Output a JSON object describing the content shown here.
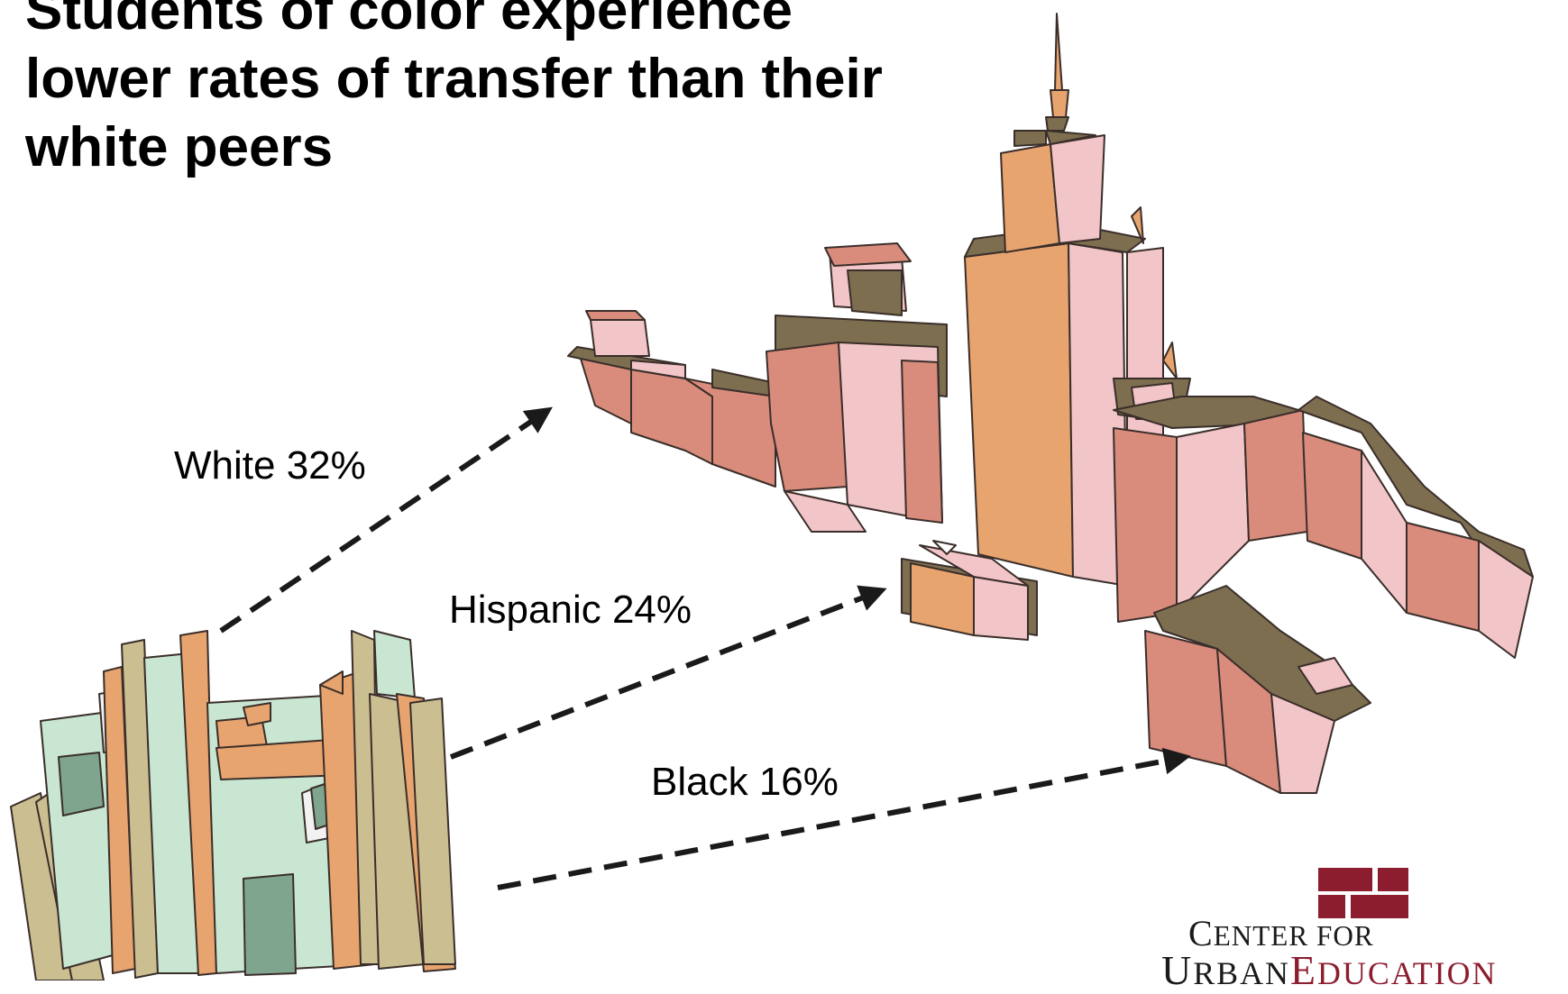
{
  "title": {
    "lines": [
      "Students of color experience",
      "lower rates of transfer than their",
      "white peers"
    ]
  },
  "transfer_rates": [
    {
      "label": "White 32%",
      "group": "White",
      "percent": 32
    },
    {
      "label": "Hispanic 24%",
      "group": "Hispanic",
      "percent": 24
    },
    {
      "label": "Black 16%",
      "group": "Black",
      "percent": 16
    }
  ],
  "logo": {
    "line1_big": "C",
    "line1_rest": "ENTER",
    "line1_small": " FOR",
    "line2_big": "U",
    "line2_rest": "RBAN",
    "line2_accent_big": "E",
    "line2_accent_rest": "DUCATION",
    "color": "#8c1d2f"
  },
  "colors": {
    "building_orange": "#e8a46e",
    "building_pink": "#f2c5c8",
    "building_rose": "#d98c7c",
    "roof_olive": "#7d6e50",
    "small_green": "#c8e6d2",
    "small_tan": "#cbbf92",
    "arrow": "#1a1a1a"
  },
  "icons": {
    "small_college": "community-college-building-icon",
    "university": "university-building-icon",
    "arrows": "dashed-arrow-icon"
  }
}
